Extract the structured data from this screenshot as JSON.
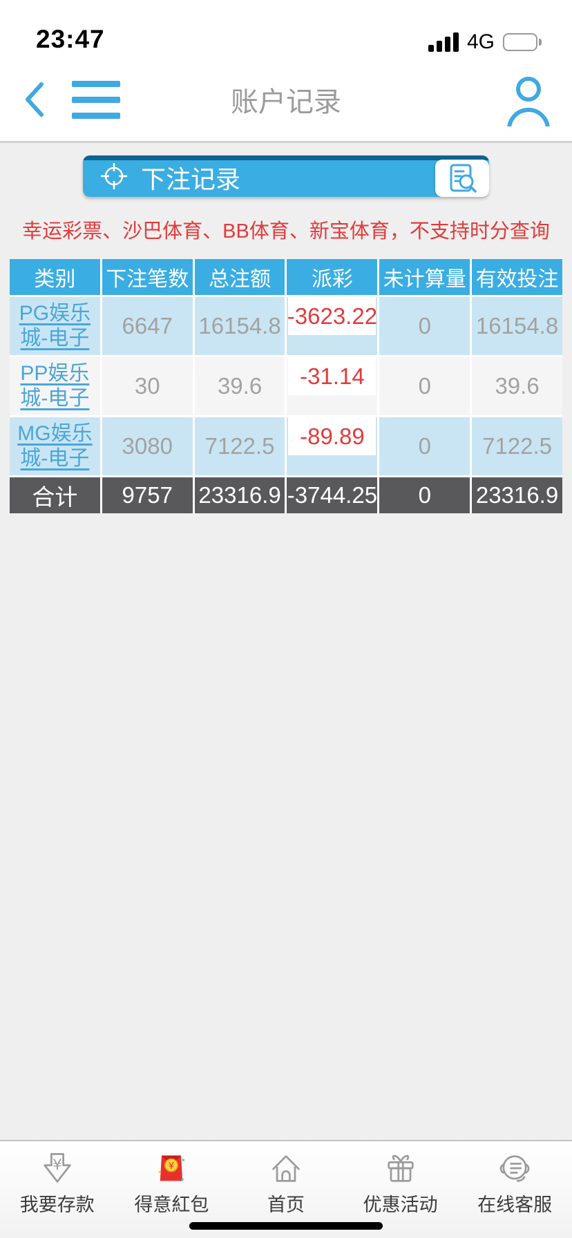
{
  "status_bar": {
    "time": "23:47",
    "network": "4G"
  },
  "header": {
    "title": "账户记录"
  },
  "banner": {
    "title": "下注记录"
  },
  "notice": "幸运彩票、沙巴体育、BB体育、新宝体育，不支持时分查询",
  "table": {
    "columns": [
      "类别",
      "下注笔数",
      "总注额",
      "派彩",
      "未计算量",
      "有效投注"
    ],
    "rows": [
      {
        "category": "PG娱乐城-电子",
        "bets": "6647",
        "total": "16154.8",
        "payout": "-3623.22",
        "uncalculated": "0",
        "valid": "16154.8"
      },
      {
        "category": "PP娱乐城-电子",
        "bets": "30",
        "total": "39.6",
        "payout": "-31.14",
        "uncalculated": "0",
        "valid": "39.6"
      },
      {
        "category": "MG娱乐城-电子",
        "bets": "3080",
        "total": "7122.5",
        "payout": "-89.89",
        "uncalculated": "0",
        "valid": "7122.5"
      }
    ],
    "totals": {
      "category": "合计",
      "bets": "9757",
      "total": "23316.9",
      "payout": "-3744.25",
      "uncalculated": "0",
      "valid": "23316.9"
    }
  },
  "nav": {
    "items": [
      {
        "label": "我要存款"
      },
      {
        "label": "得意紅包"
      },
      {
        "label": "首页"
      },
      {
        "label": "优惠活动"
      },
      {
        "label": "在线客服"
      }
    ]
  },
  "colors": {
    "accent_blue": "#3aade3",
    "banner_top_strip": "#0f6390",
    "link_blue": "#4aa6da",
    "warning_red": "#e23b3c",
    "row_blue": "#c9e5f3",
    "row_light": "#f5f5f5",
    "totals_bg": "#59595b",
    "page_bg": "#efefef"
  }
}
